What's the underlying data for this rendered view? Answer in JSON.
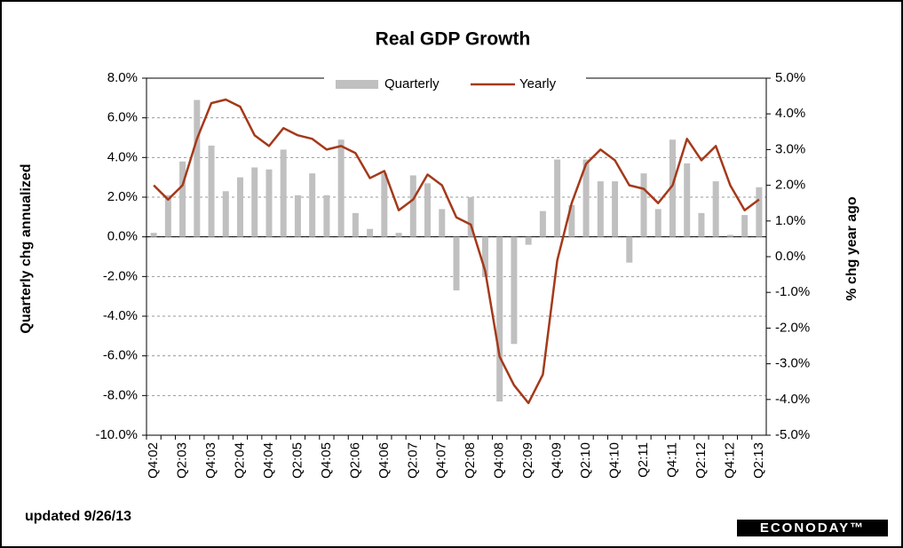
{
  "chart_data": {
    "type": "bar-line",
    "title": "Real GDP Growth",
    "y_label": "Quarterly chg annualized",
    "y2_label": "% chg year ago",
    "footnote": "updated 9/26/13",
    "logo": "ECONODAY™",
    "legend": "top",
    "grid": true,
    "categories": [
      "Q4:02",
      null,
      "Q2:03",
      null,
      "Q4:03",
      null,
      "Q2:04",
      null,
      "Q4:04",
      null,
      "Q2:05",
      null,
      "Q4:05",
      null,
      "Q2:06",
      null,
      "Q4:06",
      null,
      "Q2:07",
      null,
      "Q4:07",
      null,
      "Q2:08",
      null,
      "Q4:08",
      null,
      "Q2:09",
      null,
      "Q4:09",
      null,
      "Q2:10",
      null,
      "Q4:10",
      null,
      "Q2:11",
      null,
      "Q4:11",
      null,
      "Q2:12",
      null,
      "Q4:12",
      null,
      "Q2:13"
    ],
    "series": [
      {
        "name": "Quarterly",
        "type": "bar",
        "color": "#c0c0c0",
        "values": [
          0.2,
          2.1,
          3.8,
          6.9,
          4.6,
          2.3,
          3.0,
          3.5,
          3.4,
          4.4,
          2.1,
          3.2,
          2.1,
          4.9,
          1.2,
          0.4,
          3.2,
          0.2,
          3.1,
          2.7,
          1.4,
          -2.7,
          2.0,
          -2.0,
          -8.3,
          -5.4,
          -0.4,
          1.3,
          3.9,
          1.6,
          3.9,
          2.8,
          2.8,
          -1.3,
          3.2,
          1.4,
          4.9,
          3.7,
          1.2,
          2.8,
          0.1,
          1.1,
          2.5
        ]
      },
      {
        "name": "Yearly",
        "type": "line",
        "axis": "y2",
        "color": "#a4391a",
        "values": [
          2.0,
          1.6,
          2.0,
          3.3,
          4.3,
          4.4,
          4.2,
          3.4,
          3.1,
          3.6,
          3.4,
          3.3,
          3.0,
          3.1,
          2.9,
          2.2,
          2.4,
          1.3,
          1.6,
          2.3,
          2.0,
          1.1,
          0.9,
          -0.4,
          -2.8,
          -3.6,
          -4.1,
          -3.3,
          -0.1,
          1.5,
          2.6,
          3.0,
          2.7,
          2.0,
          1.9,
          1.5,
          2.0,
          3.3,
          2.7,
          3.1,
          2.0,
          1.3,
          1.6
        ]
      }
    ],
    "ylim": [
      -10,
      8
    ],
    "yticks": [
      {
        "value": -10,
        "label": "-10.0%"
      },
      {
        "value": -8,
        "label": "-8.0%"
      },
      {
        "value": -6,
        "label": "-6.0%"
      },
      {
        "value": -4,
        "label": "-4.0%"
      },
      {
        "value": -2,
        "label": "-2.0%"
      },
      {
        "value": 0,
        "label": "0.0%"
      },
      {
        "value": 2,
        "label": "2.0%"
      },
      {
        "value": 4,
        "label": "4.0%"
      },
      {
        "value": 6,
        "label": "6.0%"
      },
      {
        "value": 8,
        "label": "8.0%"
      }
    ],
    "y2lim": [
      -5,
      5
    ],
    "y2ticks": [
      {
        "value": -5,
        "label": "-5.0%"
      },
      {
        "value": -4,
        "label": "-4.0%"
      },
      {
        "value": -3,
        "label": "-3.0%"
      },
      {
        "value": -2,
        "label": "-2.0%"
      },
      {
        "value": -1,
        "label": "-1.0%"
      },
      {
        "value": 0,
        "label": "0.0%"
      },
      {
        "value": 1,
        "label": "1.0%"
      },
      {
        "value": 2,
        "label": "2.0%"
      },
      {
        "value": 3,
        "label": "3.0%"
      },
      {
        "value": 4,
        "label": "4.0%"
      },
      {
        "value": 5,
        "label": "5.0%"
      }
    ]
  }
}
